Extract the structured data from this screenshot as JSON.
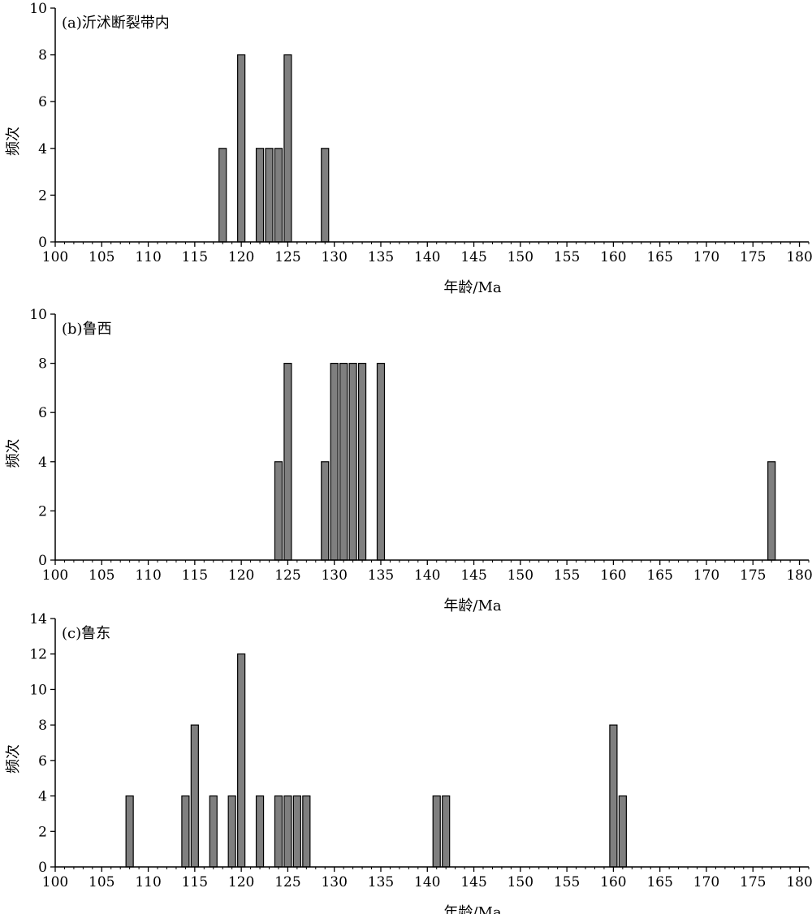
{
  "figure": {
    "bar_fill": "#7f7f7f",
    "bar_stroke": "#000000"
  },
  "chart_data": [
    {
      "type": "bar",
      "panel_label": "(a)沂沭断裂带内",
      "xlabel": "年龄/Ma",
      "ylabel": "频次",
      "xlim": [
        100,
        181
      ],
      "ylim": [
        0,
        10
      ],
      "xticks": [
        100,
        105,
        110,
        115,
        120,
        125,
        130,
        135,
        140,
        145,
        150,
        155,
        160,
        165,
        170,
        175,
        180
      ],
      "yticks": [
        0,
        2,
        4,
        6,
        8,
        10
      ],
      "x": [
        118,
        120,
        122,
        123,
        124,
        125,
        129
      ],
      "values": [
        4,
        8,
        4,
        4,
        4,
        8,
        4
      ]
    },
    {
      "type": "bar",
      "panel_label": "(b)鲁西",
      "xlabel": "年龄/Ma",
      "ylabel": "频次",
      "xlim": [
        100,
        181
      ],
      "ylim": [
        0,
        10
      ],
      "xticks": [
        100,
        105,
        110,
        115,
        120,
        125,
        130,
        135,
        140,
        145,
        150,
        155,
        160,
        165,
        170,
        175,
        180
      ],
      "yticks": [
        0,
        2,
        4,
        6,
        8,
        10
      ],
      "x": [
        124,
        125,
        129,
        130,
        131,
        132,
        133,
        135,
        177
      ],
      "values": [
        4,
        8,
        4,
        8,
        8,
        8,
        8,
        8,
        4
      ]
    },
    {
      "type": "bar",
      "panel_label": "(c)鲁东",
      "xlabel": "年龄/Ma",
      "ylabel": "频次",
      "xlim": [
        100,
        181
      ],
      "ylim": [
        0,
        14
      ],
      "xticks": [
        100,
        105,
        110,
        115,
        120,
        125,
        130,
        135,
        140,
        145,
        150,
        155,
        160,
        165,
        170,
        175,
        180
      ],
      "yticks": [
        0,
        2,
        4,
        6,
        8,
        10,
        12,
        14
      ],
      "x": [
        108,
        114,
        115,
        117,
        119,
        120,
        122,
        124,
        125,
        126,
        127,
        141,
        142,
        160,
        161
      ],
      "values": [
        4,
        4,
        8,
        4,
        4,
        12,
        4,
        4,
        4,
        4,
        4,
        4,
        4,
        8,
        4
      ]
    }
  ]
}
